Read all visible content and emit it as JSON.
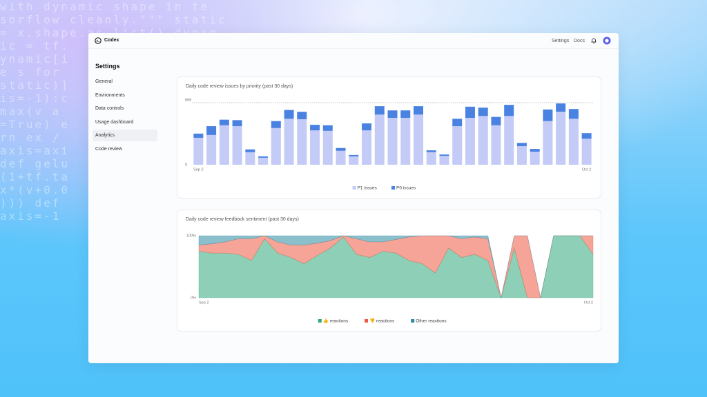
{
  "background_code": [
    "with dynamic shape in te",
    "sorflow cleanly.\"\"\" static",
    "= x.shape.as_list() dynam",
    "ic = tf.",
    "ynamic[i",
    "e s for",
    "static)]",
    "is=-1):c",
    "max(v a",
    "=True) e",
    "rn ex /",
    "axis=axi",
    "def gelu",
    "(1+tf.ta",
    "x*(v+0.0",
    "))) def",
    "axis=-1"
  ],
  "app": {
    "name": "Codex"
  },
  "nav": {
    "links": [
      "Settings",
      "Docs"
    ]
  },
  "sidebar": {
    "title": "Settings",
    "items": [
      "General",
      "Environments",
      "Data controls",
      "Usage dashboard",
      "Analytics",
      "Code review"
    ]
  },
  "chart_data": [
    {
      "type": "bar",
      "stacked": true,
      "title": "Daily code review issues by priority (past 30 days)",
      "categories": [
        "Sep 2",
        null,
        null,
        null,
        null,
        null,
        null,
        null,
        null,
        null,
        null,
        null,
        null,
        null,
        null,
        null,
        null,
        null,
        null,
        null,
        null,
        null,
        null,
        null,
        null,
        null,
        null,
        null,
        null,
        null,
        "Oct 2"
      ],
      "series": [
        {
          "name": "P1 issues",
          "color": "#c3cbf6",
          "values": [
            290,
            320,
            425,
            415,
            135,
            75,
            395,
            495,
            490,
            370,
            365,
            150,
            90,
            370,
            540,
            505,
            505,
            540,
            135,
            95,
            415,
            505,
            525,
            425,
            525,
            200,
            140,
            470,
            570,
            495,
            280
          ]
        },
        {
          "name": "P0 issues",
          "color": "#4a82e2",
          "values": [
            45,
            95,
            60,
            65,
            30,
            15,
            75,
            95,
            80,
            60,
            60,
            30,
            15,
            75,
            90,
            80,
            80,
            90,
            20,
            15,
            80,
            120,
            90,
            90,
            120,
            35,
            30,
            125,
            90,
            105,
            60
          ]
        }
      ],
      "ylim": [
        0,
        668
      ],
      "yticks": [
        0,
        668
      ],
      "grid": true
    },
    {
      "type": "area",
      "stacked": true,
      "title": "Daily code review feedback sentiment (past 30 days)",
      "categories": [
        "Sep 2",
        null,
        null,
        null,
        null,
        null,
        null,
        null,
        null,
        null,
        null,
        null,
        null,
        null,
        null,
        null,
        null,
        null,
        null,
        null,
        null,
        null,
        null,
        null,
        null,
        null,
        null,
        null,
        null,
        null,
        "Oct 2"
      ],
      "series": [
        {
          "name": "👍 reactions",
          "color": "#2faa7b",
          "values": [
            75,
            72,
            72,
            70,
            60,
            95,
            72,
            65,
            55,
            68,
            80,
            98,
            70,
            65,
            75,
            72,
            60,
            55,
            40,
            80,
            65,
            70,
            60,
            0,
            80,
            0,
            0,
            100,
            100,
            100,
            70
          ]
        },
        {
          "name": "👎 reactions",
          "color": "#ee5a44",
          "values": [
            10,
            15,
            18,
            25,
            35,
            5,
            18,
            20,
            30,
            20,
            12,
            2,
            25,
            25,
            15,
            22,
            38,
            45,
            60,
            20,
            30,
            28,
            35,
            0,
            20,
            100,
            0,
            0,
            0,
            0,
            30
          ]
        },
        {
          "name": "Other reactions",
          "color": "#2c8aa3",
          "values": [
            15,
            13,
            10,
            5,
            5,
            0,
            10,
            15,
            15,
            12,
            8,
            0,
            5,
            10,
            10,
            6,
            2,
            0,
            0,
            0,
            5,
            2,
            5,
            0,
            0,
            0,
            0,
            0,
            0,
            0,
            0
          ]
        }
      ],
      "ylim": [
        0,
        100
      ],
      "yticks": [
        {
          "value": 0,
          "label": "0%"
        },
        {
          "value": 100,
          "label": "100%"
        }
      ],
      "grid": false
    }
  ]
}
